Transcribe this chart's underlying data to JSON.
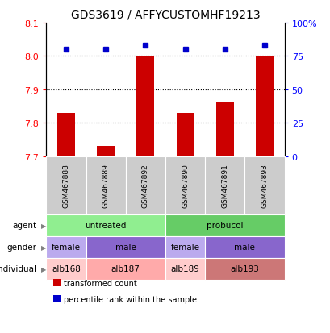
{
  "title": "GDS3619 / AFFYCUSTOMHF19213",
  "samples": [
    "GSM467888",
    "GSM467889",
    "GSM467892",
    "GSM467890",
    "GSM467891",
    "GSM467893"
  ],
  "transformed_counts": [
    7.83,
    7.73,
    8.0,
    7.83,
    7.86,
    8.0
  ],
  "percentile_ranks": [
    80,
    80,
    83,
    80,
    80,
    83
  ],
  "ylim_left": [
    7.7,
    8.1
  ],
  "ylim_right": [
    0,
    100
  ],
  "yticks_left": [
    7.7,
    7.8,
    7.9,
    8.0,
    8.1
  ],
  "yticks_right": [
    0,
    25,
    50,
    75,
    100
  ],
  "bar_color": "#CC0000",
  "dot_color": "#0000CC",
  "agent_row": {
    "label": "agent",
    "groups": [
      {
        "text": "untreated",
        "cols": [
          0,
          1,
          2
        ],
        "color": "#90EE90"
      },
      {
        "text": "probucol",
        "cols": [
          3,
          4,
          5
        ],
        "color": "#66CC66"
      }
    ]
  },
  "gender_row": {
    "label": "gender",
    "groups": [
      {
        "text": "female",
        "cols": [
          0
        ],
        "color": "#BBAAEE"
      },
      {
        "text": "male",
        "cols": [
          1,
          2
        ],
        "color": "#8866CC"
      },
      {
        "text": "female",
        "cols": [
          3
        ],
        "color": "#BBAAEE"
      },
      {
        "text": "male",
        "cols": [
          4,
          5
        ],
        "color": "#8866CC"
      }
    ]
  },
  "individual_row": {
    "label": "individual",
    "groups": [
      {
        "text": "alb168",
        "cols": [
          0
        ],
        "color": "#FFCCCC"
      },
      {
        "text": "alb187",
        "cols": [
          1,
          2
        ],
        "color": "#FFAAAA"
      },
      {
        "text": "alb189",
        "cols": [
          3
        ],
        "color": "#FFCCCC"
      },
      {
        "text": "alb193",
        "cols": [
          4,
          5
        ],
        "color": "#CC7777"
      }
    ]
  },
  "sample_box_color": "#CCCCCC",
  "legend_items": [
    {
      "label": "transformed count",
      "color": "#CC0000"
    },
    {
      "label": "percentile rank within the sample",
      "color": "#0000CC"
    }
  ]
}
